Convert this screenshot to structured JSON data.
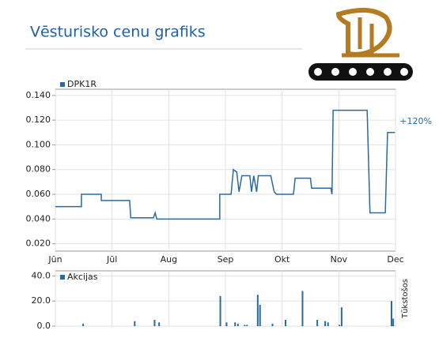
{
  "chart_data": [
    {
      "type": "line",
      "title": "Vēsturisko cenu grafiks",
      "annotation": "+120%",
      "xlim": [
        0,
        6
      ],
      "xticks": [
        {
          "value": 0,
          "label": "Jūn"
        },
        {
          "value": 1,
          "label": "Jūl"
        },
        {
          "value": 2,
          "label": "Aug"
        },
        {
          "value": 3,
          "label": "Sep"
        },
        {
          "value": 4,
          "label": "Okt"
        },
        {
          "value": 5,
          "label": "Nov"
        },
        {
          "value": 6,
          "label": "Dec"
        }
      ],
      "ylim": [
        0.014,
        0.145
      ],
      "yticks": [
        {
          "value": 0.02,
          "label": "0.020"
        },
        {
          "value": 0.04,
          "label": "0.040"
        },
        {
          "value": 0.06,
          "label": "0.060"
        },
        {
          "value": 0.08,
          "label": "0.080"
        },
        {
          "value": 0.1,
          "label": "0.100"
        },
        {
          "value": 0.12,
          "label": "0.120"
        },
        {
          "value": 0.14,
          "label": "0.140"
        }
      ],
      "grid": true,
      "series": [
        {
          "name": "DPK1R",
          "color": "#2a6aa3",
          "x": [
            0,
            0.46,
            0.46,
            0.81,
            0.81,
            1.31,
            1.33,
            1.73,
            1.76,
            1.79,
            2.9,
            2.9,
            3.1,
            3.14,
            3.2,
            3.24,
            3.29,
            3.43,
            3.46,
            3.5,
            3.55,
            3.58,
            3.8,
            3.86,
            3.9,
            4.2,
            4.23,
            4.5,
            4.52,
            4.86,
            4.88,
            4.9,
            5.5,
            5.55,
            5.82,
            5.86,
            5.99
          ],
          "values": [
            0.05,
            0.05,
            0.06,
            0.06,
            0.055,
            0.055,
            0.041,
            0.041,
            0.045,
            0.04,
            0.04,
            0.06,
            0.06,
            0.08,
            0.078,
            0.062,
            0.075,
            0.075,
            0.062,
            0.075,
            0.062,
            0.075,
            0.075,
            0.062,
            0.06,
            0.06,
            0.073,
            0.073,
            0.065,
            0.065,
            0.06,
            0.128,
            0.128,
            0.045,
            0.045,
            0.11,
            0.11
          ]
        }
      ]
    },
    {
      "type": "bar",
      "y_label": "Tūkstošos",
      "xlim": [
        0,
        6
      ],
      "ylim": [
        0,
        44
      ],
      "yticks": [
        {
          "value": 0,
          "label": "0.0"
        },
        {
          "value": 20,
          "label": "20.0"
        },
        {
          "value": 40,
          "label": "40.0"
        }
      ],
      "grid": true,
      "series": [
        {
          "name": "Akcijas",
          "color": "#2a6aa3",
          "x": [
            0.49,
            1.4,
            1.75,
            1.83,
            2.91,
            3.02,
            3.17,
            3.22,
            3.34,
            3.38,
            3.57,
            3.61,
            3.83,
            4.06,
            4.36,
            4.62,
            4.76,
            4.81,
            5.01,
            5.05,
            5.93,
            5.96
          ],
          "values": [
            2,
            4,
            5,
            3,
            24,
            3,
            3,
            2,
            1,
            1,
            25,
            17,
            2,
            5,
            28,
            5,
            4,
            3,
            1,
            15,
            20,
            6
          ]
        }
      ]
    }
  ]
}
